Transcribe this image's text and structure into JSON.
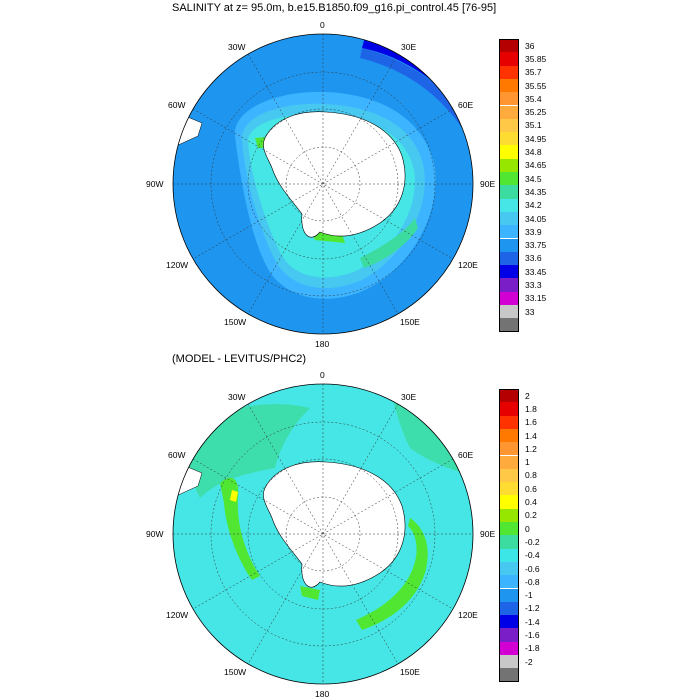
{
  "panels": [
    {
      "title": "SALINITY at z=  95.0m, b.e15.B1850.f09_g16.pi_control.45 [76-95]",
      "field": "salinity",
      "longitude_labels": [
        "0",
        "30E",
        "60E",
        "90E",
        "120E",
        "150E",
        "180",
        "150W",
        "120W",
        "90W",
        "60W",
        "30W"
      ],
      "legend": {
        "colors": [
          "#737373",
          "#c8c8c8",
          "#d200d2",
          "#7a1ec8",
          "#0000e6",
          "#1e64e6",
          "#1e96f0",
          "#3cb4ff",
          "#46c8f0",
          "#46e6e6",
          "#3cdca0",
          "#50e632",
          "#96e600",
          "#ffff00",
          "#ffdc32",
          "#ffc846",
          "#ffaa3c",
          "#ff9632",
          "#ff7800",
          "#ff3200",
          "#e60000",
          "#b40000"
        ],
        "ticks": [
          "36",
          "35.85",
          "35.7",
          "35.55",
          "35.4",
          "35.25",
          "35.1",
          "34.95",
          "34.8",
          "34.65",
          "34.5",
          "34.35",
          "34.2",
          "34.05",
          "33.9",
          "33.75",
          "33.6",
          "33.45",
          "33.3",
          "33.15",
          "33"
        ]
      }
    },
    {
      "title": "(MODEL - LEVITUS/PHC2)",
      "field": "difference",
      "longitude_labels": [
        "0",
        "30E",
        "60E",
        "90E",
        "120E",
        "150E",
        "180",
        "150W",
        "120W",
        "90W",
        "60W",
        "30W"
      ],
      "legend": {
        "colors": [
          "#737373",
          "#c8c8c8",
          "#d200d2",
          "#7a1ec8",
          "#0000e6",
          "#1e64e6",
          "#1e96f0",
          "#3cb4ff",
          "#46c8f0",
          "#3ce6e6",
          "#3cdca0",
          "#50e632",
          "#96e600",
          "#ffff00",
          "#ffdc32",
          "#ffc846",
          "#ffaa3c",
          "#ff9632",
          "#ff7800",
          "#ff3200",
          "#e60000",
          "#b40000"
        ],
        "ticks": [
          "2",
          "1.8",
          "1.6",
          "1.4",
          "1.2",
          "1",
          "0.8",
          "0.6",
          "0.4",
          "0.2",
          "0",
          "-0.2",
          "-0.4",
          "-0.6",
          "-0.8",
          "-1",
          "-1.2",
          "-1.4",
          "-1.6",
          "-1.8",
          "-2"
        ]
      }
    }
  ]
}
